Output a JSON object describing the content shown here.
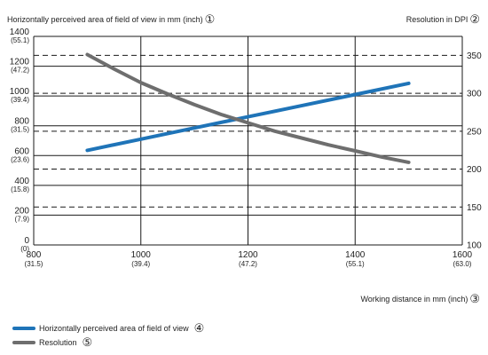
{
  "chart_data": {
    "type": "line",
    "left_axis_title": "Horizontally perceived area of field of view in mm (inch)",
    "left_axis_marker": "①",
    "right_axis_title": "Resolution in DPI",
    "right_axis_marker": "②",
    "x_axis_title": "Working distance in mm (inch)",
    "x_axis_marker": "③",
    "xlim": [
      800,
      1600
    ],
    "ylim_left": [
      0,
      1400
    ],
    "ylim_right": [
      100,
      375
    ],
    "x_ticks": [
      {
        "value": 800,
        "label": "800",
        "sub": "(31.5)"
      },
      {
        "value": 1000,
        "label": "1000",
        "sub": "(39.4)"
      },
      {
        "value": 1200,
        "label": "1200",
        "sub": "(47.2)"
      },
      {
        "value": 1400,
        "label": "1400",
        "sub": "(55.1)"
      },
      {
        "value": 1600,
        "label": "1600",
        "sub": "(63.0)"
      }
    ],
    "y_left_ticks": [
      {
        "value": 0,
        "label": "0",
        "sub": "(0)"
      },
      {
        "value": 200,
        "label": "200",
        "sub": "(7.9)"
      },
      {
        "value": 400,
        "label": "400",
        "sub": "(15.8)"
      },
      {
        "value": 600,
        "label": "600",
        "sub": "(23.6)"
      },
      {
        "value": 800,
        "label": "800",
        "sub": "(31.5)"
      },
      {
        "value": 1000,
        "label": "1000",
        "sub": "(39.4)"
      },
      {
        "value": 1200,
        "label": "1200",
        "sub": "(47.2)"
      },
      {
        "value": 1400,
        "label": "1400",
        "sub": "(55.1)"
      }
    ],
    "y_right_ticks": [
      {
        "value": 100,
        "label": "100"
      },
      {
        "value": 150,
        "label": "150"
      },
      {
        "value": 200,
        "label": "200"
      },
      {
        "value": 250,
        "label": "250"
      },
      {
        "value": 300,
        "label": "300"
      },
      {
        "value": 350,
        "label": "350"
      }
    ],
    "grid": true,
    "series": [
      {
        "name": "Horizontally perceived area of field of view",
        "marker": "④",
        "axis": "left",
        "color": "#1f74b8",
        "x": [
          900,
          1000,
          1100,
          1200,
          1300,
          1400,
          1500
        ],
        "y": [
          635,
          710,
          785,
          860,
          935,
          1010,
          1085
        ]
      },
      {
        "name": "Resolution",
        "marker": "⑤",
        "axis": "right",
        "color": "#6e6e6e",
        "x": [
          900,
          950,
          1000,
          1050,
          1100,
          1150,
          1200,
          1250,
          1300,
          1350,
          1400,
          1450,
          1500
        ],
        "y": [
          351,
          332,
          314,
          299,
          285,
          272,
          261,
          250,
          241,
          232,
          224,
          216,
          209
        ]
      }
    ]
  }
}
